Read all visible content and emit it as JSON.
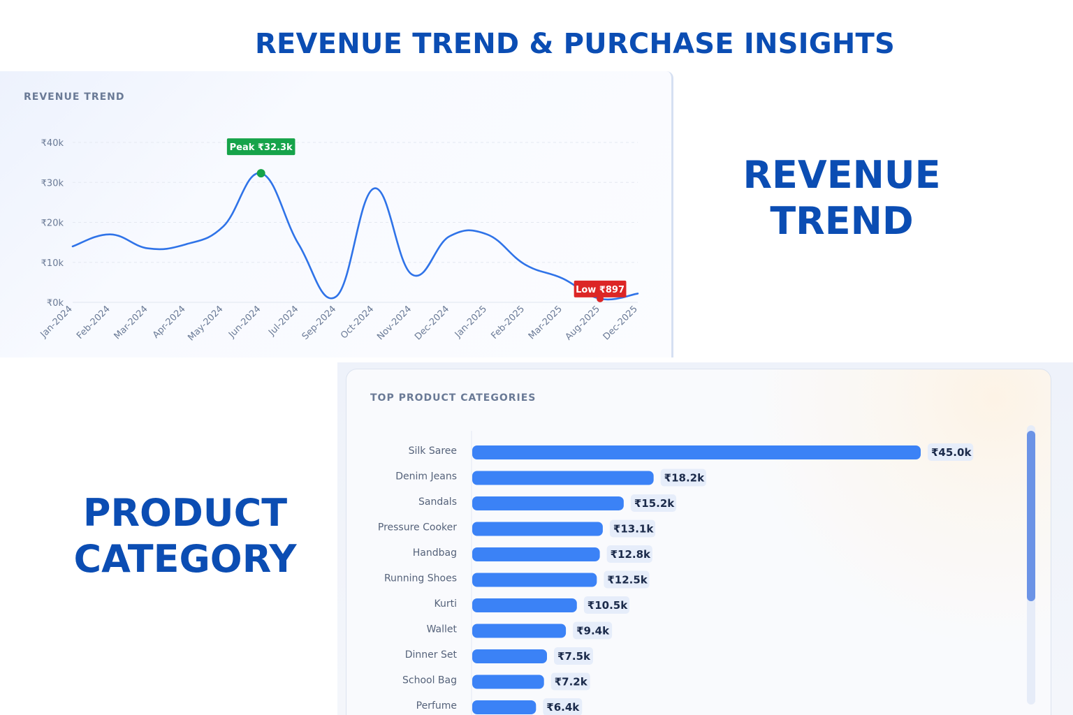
{
  "page": {
    "title": "REVENUE TREND & PURCHASE INSIGHTS",
    "side_label_revenue": [
      "REVENUE",
      "TREND"
    ],
    "side_label_product": [
      "PRODUCT",
      "CATEGORY"
    ]
  },
  "colors": {
    "accent": "#0b4db3",
    "line": "#2f73e8",
    "bar": "#3b82f6",
    "peak": "#16a34a",
    "low": "#dc2626",
    "axis_text": "#6a7a96"
  },
  "chart_data": [
    {
      "type": "line",
      "title": "REVENUE TREND",
      "categories": [
        "Jan-2024",
        "Feb-2024",
        "Mar-2024",
        "Apr-2024",
        "May-2024",
        "Jun-2024",
        "Jul-2024",
        "Sep-2024",
        "Oct-2024",
        "Nov-2024",
        "Dec-2024",
        "Jan-2025",
        "Feb-2025",
        "Mar-2025",
        "Aug-2025",
        "Dec-2025"
      ],
      "values": [
        14000,
        17000,
        13500,
        14500,
        19000,
        32300,
        14500,
        1500,
        28500,
        7000,
        16500,
        17000,
        9500,
        6000,
        897,
        2200
      ],
      "ylim": [
        0,
        40000
      ],
      "yticks": [
        "₹0k",
        "₹10k",
        "₹20k",
        "₹30k",
        "₹40k"
      ],
      "grid": true,
      "annotations": {
        "peak_label": "Peak ₹32.3k",
        "low_label": "Low ₹897"
      }
    },
    {
      "type": "bar",
      "orientation": "horizontal",
      "title": "TOP PRODUCT CATEGORIES",
      "categories": [
        "Silk Saree",
        "Denim Jeans",
        "Sandals",
        "Pressure Cooker",
        "Handbag",
        "Running Shoes",
        "Kurti",
        "Wallet",
        "Dinner Set",
        "School Bag",
        "Perfume"
      ],
      "values": [
        45000,
        18200,
        15200,
        13100,
        12800,
        12500,
        10500,
        9400,
        7500,
        7200,
        6400
      ],
      "value_labels": [
        "₹45.0k",
        "₹18.2k",
        "₹15.2k",
        "₹13.1k",
        "₹12.8k",
        "₹12.5k",
        "₹10.5k",
        "₹9.4k",
        "₹7.5k",
        "₹7.2k",
        "₹6.4k"
      ]
    }
  ]
}
